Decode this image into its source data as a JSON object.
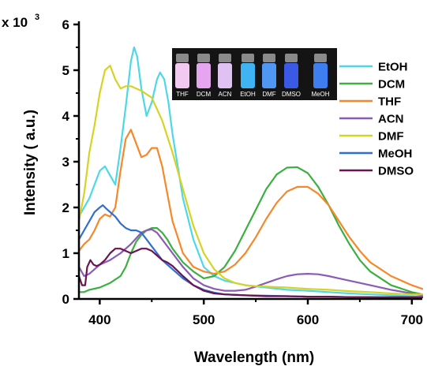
{
  "chart_data": {
    "type": "line",
    "xlabel": "Wavelength (nm)",
    "ylabel": "Intensity ( a.u.)",
    "y_multiplier_label": "x 10",
    "y_multiplier_exp": "3",
    "xlim": [
      380,
      710
    ],
    "ylim": [
      0,
      6
    ],
    "xticks": [
      400,
      500,
      600,
      700
    ],
    "yticks": [
      0,
      1,
      2,
      3,
      4,
      5,
      6
    ],
    "grid": false,
    "legend_position": "right",
    "inset_photo_labels": [
      "THF",
      "DCM",
      "ACN",
      "EtOH",
      "DMF",
      "DMSO",
      "MeOH"
    ],
    "series": [
      {
        "name": "EtOH",
        "color": "#4dd8e8",
        "x": [
          380,
          385,
          390,
          395,
          400,
          405,
          410,
          415,
          420,
          425,
          430,
          433,
          436,
          440,
          445,
          450,
          455,
          458,
          462,
          466,
          470,
          475,
          480,
          490,
          500,
          510,
          520,
          540,
          560,
          580,
          600,
          620,
          640,
          660,
          680,
          700,
          710
        ],
        "y": [
          1.8,
          2.0,
          2.2,
          2.5,
          2.8,
          2.9,
          2.7,
          2.5,
          3.3,
          4.2,
          5.2,
          5.5,
          5.3,
          4.6,
          4.0,
          4.3,
          4.8,
          4.95,
          4.8,
          4.3,
          3.6,
          2.9,
          2.2,
          1.3,
          0.7,
          0.5,
          0.4,
          0.3,
          0.25,
          0.2,
          0.18,
          0.15,
          0.12,
          0.1,
          0.08,
          0.06,
          0.05
        ]
      },
      {
        "name": "DCM",
        "color": "#3bb041",
        "x": [
          380,
          385,
          390,
          400,
          410,
          420,
          425,
          430,
          435,
          440,
          445,
          450,
          455,
          460,
          465,
          470,
          480,
          490,
          500,
          510,
          520,
          530,
          540,
          550,
          560,
          570,
          580,
          590,
          600,
          610,
          620,
          630,
          640,
          650,
          660,
          680,
          700,
          710
        ],
        "y": [
          0.15,
          0.15,
          0.2,
          0.25,
          0.35,
          0.5,
          0.7,
          1.0,
          1.25,
          1.4,
          1.5,
          1.55,
          1.55,
          1.45,
          1.3,
          1.1,
          0.8,
          0.6,
          0.45,
          0.5,
          0.7,
          1.05,
          1.5,
          1.95,
          2.4,
          2.72,
          2.87,
          2.88,
          2.75,
          2.45,
          2.05,
          1.6,
          1.2,
          0.85,
          0.6,
          0.3,
          0.15,
          0.1
        ]
      },
      {
        "name": "THF",
        "color": "#f5882a",
        "x": [
          380,
          385,
          390,
          395,
          400,
          405,
          410,
          415,
          420,
          425,
          430,
          435,
          440,
          445,
          450,
          455,
          460,
          465,
          470,
          480,
          490,
          500,
          510,
          520,
          530,
          540,
          550,
          560,
          570,
          580,
          590,
          600,
          610,
          620,
          630,
          640,
          650,
          660,
          680,
          700,
          710
        ],
        "y": [
          1.05,
          1.2,
          1.3,
          1.5,
          1.75,
          1.85,
          1.8,
          2.0,
          2.8,
          3.5,
          3.7,
          3.4,
          3.1,
          3.15,
          3.3,
          3.3,
          2.9,
          2.3,
          1.7,
          1.0,
          0.7,
          0.6,
          0.55,
          0.6,
          0.75,
          1.0,
          1.35,
          1.75,
          2.1,
          2.35,
          2.45,
          2.45,
          2.3,
          2.05,
          1.7,
          1.35,
          1.05,
          0.8,
          0.5,
          0.3,
          0.22
        ]
      },
      {
        "name": "ACN",
        "color": "#8b5cb5",
        "x": [
          380,
          385,
          390,
          395,
          400,
          405,
          410,
          420,
          430,
          440,
          445,
          450,
          455,
          460,
          470,
          480,
          490,
          500,
          510,
          520,
          530,
          540,
          550,
          560,
          570,
          580,
          590,
          600,
          610,
          620,
          630,
          640,
          660,
          680,
          700,
          710
        ],
        "y": [
          0.7,
          0.5,
          0.55,
          0.65,
          0.75,
          0.8,
          0.85,
          1.0,
          1.2,
          1.45,
          1.5,
          1.52,
          1.45,
          1.3,
          1.0,
          0.7,
          0.45,
          0.3,
          0.22,
          0.18,
          0.18,
          0.2,
          0.27,
          0.35,
          0.43,
          0.5,
          0.54,
          0.55,
          0.54,
          0.5,
          0.45,
          0.4,
          0.3,
          0.2,
          0.12,
          0.08
        ]
      },
      {
        "name": "DMF",
        "color": "#d6d325",
        "x": [
          380,
          385,
          390,
          395,
          400,
          405,
          410,
          415,
          420,
          425,
          430,
          440,
          450,
          460,
          470,
          480,
          490,
          500,
          510,
          520,
          530,
          540,
          550,
          560,
          580,
          600,
          620,
          640,
          660,
          680,
          700,
          710
        ],
        "y": [
          1.7,
          2.3,
          3.2,
          3.8,
          4.5,
          5.0,
          5.1,
          4.8,
          4.6,
          4.65,
          4.65,
          4.55,
          4.4,
          3.9,
          3.2,
          2.4,
          1.6,
          1.0,
          0.65,
          0.45,
          0.35,
          0.3,
          0.28,
          0.27,
          0.25,
          0.22,
          0.2,
          0.17,
          0.15,
          0.12,
          0.1,
          0.1
        ]
      },
      {
        "name": "MeOH",
        "color": "#2f6fd1",
        "x": [
          380,
          385,
          390,
          395,
          400,
          403,
          406,
          410,
          415,
          420,
          425,
          430,
          435,
          440,
          445,
          450,
          455,
          460,
          465,
          470,
          480,
          490,
          500,
          510,
          520,
          540,
          560,
          580,
          600,
          620,
          640,
          660,
          680,
          700,
          710
        ],
        "y": [
          1.3,
          1.5,
          1.7,
          1.9,
          2.0,
          2.05,
          1.98,
          1.9,
          1.8,
          1.65,
          1.55,
          1.5,
          1.5,
          1.45,
          1.3,
          1.15,
          1.0,
          0.85,
          0.75,
          0.65,
          0.45,
          0.3,
          0.2,
          0.14,
          0.1,
          0.08,
          0.07,
          0.06,
          0.05,
          0.05,
          0.04,
          0.04,
          0.03,
          0.03,
          0.03
        ]
      },
      {
        "name": "DMSO",
        "color": "#6a1454",
        "x": [
          380,
          383,
          386,
          388,
          391,
          394,
          397,
          400,
          405,
          410,
          415,
          420,
          425,
          430,
          435,
          440,
          445,
          450,
          455,
          460,
          465,
          470,
          480,
          490,
          500,
          510,
          520,
          540,
          560,
          580,
          600,
          620,
          640,
          660,
          680,
          700,
          710
        ],
        "y": [
          0.5,
          0.3,
          0.3,
          0.7,
          0.85,
          0.75,
          0.72,
          0.75,
          0.85,
          1.0,
          1.1,
          1.1,
          1.05,
          1.0,
          1.05,
          1.1,
          1.1,
          1.05,
          0.95,
          0.85,
          0.8,
          0.72,
          0.5,
          0.3,
          0.18,
          0.12,
          0.1,
          0.08,
          0.06,
          0.06,
          0.05,
          0.05,
          0.04,
          0.04,
          0.04,
          0.04,
          0.04
        ]
      }
    ]
  }
}
